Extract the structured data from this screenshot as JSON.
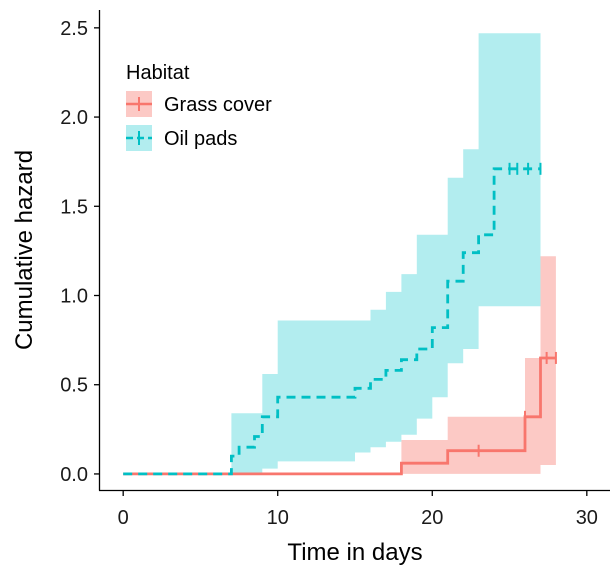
{
  "chart_data": {
    "type": "line",
    "subtype": "step cumulative hazard with confidence bands",
    "xlabel": "Time in days",
    "ylabel": "Cumulative hazard",
    "xlim": [
      -1.5,
      31.5
    ],
    "ylim": [
      -0.09,
      2.6
    ],
    "x_ticks": [
      0,
      10,
      20,
      30
    ],
    "x_tick_labels": [
      "0",
      "10",
      "20",
      "30"
    ],
    "y_ticks": [
      0.0,
      0.5,
      1.0,
      1.5,
      2.0,
      2.5
    ],
    "y_tick_labels": [
      "0.0",
      "0.5",
      "1.0",
      "1.5",
      "2.0",
      "2.5"
    ],
    "grid": false,
    "legend": {
      "title": "Habitat",
      "position": "top-left"
    },
    "series": [
      {
        "name": "Grass cover",
        "color": "#F8766D",
        "band_color": "#FCC9C5",
        "line_style": "solid",
        "x": [
          0,
          18,
          21,
          26,
          27,
          28
        ],
        "y": [
          0,
          0.06,
          0.13,
          0.32,
          0.65,
          0.65
        ],
        "lower": [
          0,
          0,
          0,
          0,
          0.05,
          0.05
        ],
        "upper": [
          0,
          0.19,
          0.32,
          0.65,
          1.22,
          1.22
        ],
        "censored": [
          {
            "x": 23,
            "y": 0.13
          },
          {
            "x": 26,
            "y": 0.32
          },
          {
            "x": 27.4,
            "y": 0.65
          },
          {
            "x": 28,
            "y": 0.65
          }
        ]
      },
      {
        "name": "Oil pads",
        "color": "#00BFC4",
        "band_color": "#B2EDEF",
        "line_style": "dashed",
        "x": [
          0,
          7,
          7.5,
          8.5,
          9,
          10,
          15,
          16,
          17,
          18,
          19,
          20,
          21,
          22,
          23,
          24,
          27
        ],
        "y": [
          0,
          0.1,
          0.15,
          0.21,
          0.32,
          0.43,
          0.48,
          0.53,
          0.58,
          0.64,
          0.7,
          0.82,
          1.08,
          1.24,
          1.34,
          1.71,
          1.71
        ],
        "lower": [
          0,
          0,
          0,
          0,
          0.03,
          0.07,
          0.12,
          0.15,
          0.18,
          0.22,
          0.31,
          0.43,
          0.62,
          0.7,
          0.94,
          0.94,
          0.94
        ],
        "upper": [
          0,
          0.34,
          0.34,
          0.34,
          0.56,
          0.86,
          0.86,
          0.92,
          1.02,
          1.12,
          1.34,
          1.34,
          1.66,
          1.82,
          2.47,
          2.47,
          2.47
        ],
        "censored": [
          {
            "x": 25,
            "y": 1.71
          },
          {
            "x": 25.5,
            "y": 1.71
          },
          {
            "x": 26.2,
            "y": 1.71
          },
          {
            "x": 27,
            "y": 1.71
          }
        ]
      }
    ]
  }
}
